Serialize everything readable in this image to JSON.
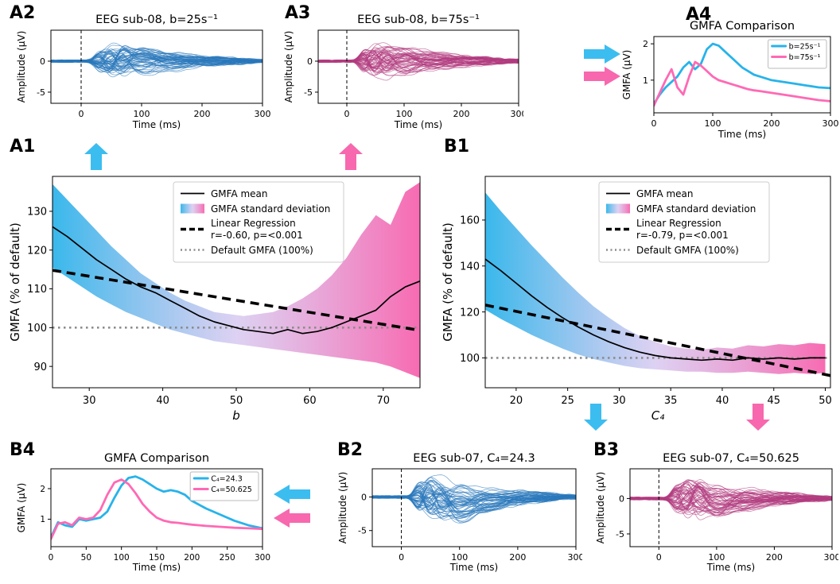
{
  "palette": {
    "blue": "#3cbdf0",
    "pink": "#f768ae",
    "trace_blue": "#2a78bc",
    "trace_pink": "#b23c80",
    "line_blue": "#27b3ea",
    "line_pink": "#ff69b4",
    "band_blue": "#2fb4ea",
    "band_mid": "#d5c6ef",
    "band_pink": "#f763ae",
    "baseline_gray": "#8c8c8c",
    "axis_black": "#000000"
  },
  "panel_labels": {
    "a1": "A1",
    "a2": "A2",
    "a3": "A3",
    "a4": "A4",
    "b1": "B1",
    "b2": "B2",
    "b3": "B3",
    "b4": "B4"
  },
  "arrows": [
    {
      "id": "a2-up-blue",
      "dir": "up",
      "color_key": "blue"
    },
    {
      "id": "a3-up-pink",
      "dir": "up",
      "color_key": "pink"
    },
    {
      "id": "a4-right-blue",
      "dir": "right",
      "color_key": "blue"
    },
    {
      "id": "a4-right-pink",
      "dir": "right",
      "color_key": "pink"
    },
    {
      "id": "b2-down-blue",
      "dir": "down",
      "color_key": "blue"
    },
    {
      "id": "b3-down-pink",
      "dir": "down",
      "color_key": "pink"
    },
    {
      "id": "b4-left-blue",
      "dir": "left",
      "color_key": "blue"
    },
    {
      "id": "b4-left-pink",
      "dir": "left",
      "color_key": "pink"
    }
  ],
  "chart_data": [
    {
      "id": "A2",
      "type": "line",
      "variant": "eeg_butterfly",
      "title": "EEG sub-08, b=25s⁻¹",
      "xlabel": "Time (ms)",
      "ylabel": "Amplitude (µV)",
      "xlim": [
        -50,
        300
      ],
      "ylim": [
        -6.8,
        5.0
      ],
      "xticks": [
        0,
        100,
        200,
        300
      ],
      "yticks": [
        0,
        -5
      ],
      "stim_line_x": 0,
      "n_traces": 60,
      "seed": 82,
      "color_key": "trace_blue",
      "peak_uv": 4.4,
      "neg_bias": 0.05,
      "description": "Butterfly plot of ~60 overlaid EEG channel traces; TEP deflections span about -5.5 to +4.5 µV peaking 30-120 ms after the stimulus (dashed line at t=0)"
    },
    {
      "id": "A3",
      "type": "line",
      "variant": "eeg_butterfly",
      "title": "EEG sub-08, b=75s⁻¹",
      "xlabel": "Time (ms)",
      "ylabel": "Amplitude (µV)",
      "xlim": [
        -50,
        300
      ],
      "ylim": [
        -6.8,
        5.0
      ],
      "xticks": [
        0,
        100,
        200,
        300
      ],
      "yticks": [
        0,
        -5
      ],
      "stim_line_x": 0,
      "n_traces": 60,
      "seed": 83,
      "color_key": "trace_pink",
      "peak_uv": 4.6,
      "neg_bias": 0.05,
      "description": "Butterfly plot of ~60 overlaid EEG channel traces in magenta; deflections span about -5 to +4.5 µV peaking 20-120 ms after the stimulus"
    },
    {
      "id": "A4",
      "type": "line",
      "title": "GMFA Comparison",
      "xlabel": "Time (ms)",
      "ylabel": "GMFA (µV)",
      "xlim": [
        0,
        300
      ],
      "ylim": [
        0.1,
        2.2
      ],
      "xticks": [
        0,
        100,
        200,
        300
      ],
      "yticks": [
        1,
        2
      ],
      "legend_loc": "upper_right",
      "x": [
        0,
        10,
        20,
        30,
        40,
        50,
        60,
        70,
        80,
        90,
        100,
        110,
        120,
        130,
        140,
        150,
        160,
        170,
        180,
        200,
        220,
        240,
        260,
        280,
        300
      ],
      "series": [
        {
          "name": "b=25s⁻¹",
          "color_key": "line_blue",
          "y": [
            0.35,
            0.6,
            0.8,
            0.95,
            1.1,
            1.35,
            1.5,
            1.3,
            1.45,
            1.85,
            2.0,
            1.95,
            1.8,
            1.65,
            1.5,
            1.35,
            1.25,
            1.15,
            1.1,
            1.0,
            0.95,
            0.9,
            0.85,
            0.8,
            0.78
          ]
        },
        {
          "name": "b=75s⁻¹",
          "color_key": "line_pink",
          "y": [
            0.3,
            0.65,
            1.0,
            1.3,
            0.8,
            0.6,
            1.1,
            1.5,
            1.4,
            1.25,
            1.1,
            1.0,
            0.95,
            0.9,
            0.85,
            0.8,
            0.75,
            0.72,
            0.7,
            0.65,
            0.6,
            0.55,
            0.5,
            0.45,
            0.42
          ]
        }
      ]
    },
    {
      "id": "A1",
      "type": "line_band",
      "xlabel": "b",
      "xlabel_italic": true,
      "ylabel": "GMFA (% of default)",
      "xlim": [
        25,
        75
      ],
      "ylim": [
        84.5,
        139
      ],
      "xticks": [
        30,
        40,
        50,
        60,
        70
      ],
      "yticks": [
        90,
        100,
        110,
        120,
        130
      ],
      "x": [
        25,
        27,
        29,
        31,
        33,
        35,
        37,
        39,
        41,
        43,
        45,
        47,
        49,
        51,
        53,
        55,
        57,
        59,
        61,
        63,
        65,
        67,
        69,
        71,
        73,
        75
      ],
      "mean": [
        126,
        123.5,
        120.5,
        117.5,
        115,
        112.5,
        110.5,
        109,
        107,
        105,
        103,
        101.5,
        100.5,
        99.5,
        99,
        98.5,
        99.5,
        98.5,
        99,
        100,
        101.5,
        103,
        104.5,
        108,
        110.5,
        112
      ],
      "upper": [
        137,
        133,
        129,
        125,
        121,
        117.5,
        114,
        111.5,
        109,
        107,
        105.5,
        104,
        103.5,
        103,
        103.5,
        104,
        105.5,
        107.5,
        110,
        113.5,
        118,
        124,
        129,
        126.5,
        135,
        137.5
      ],
      "lower": [
        115.5,
        113,
        110.5,
        108,
        106,
        104,
        102.5,
        101,
        99.5,
        98.5,
        97.5,
        96.5,
        96,
        95.5,
        95,
        94.5,
        94,
        93.5,
        93,
        92.5,
        92,
        91.5,
        91,
        90,
        88.5,
        87
      ],
      "regression": {
        "x0": 25,
        "y0": 114.8,
        "x1": 75,
        "y1": 99.3,
        "r": "-0.60",
        "p": "<0.001"
      },
      "baseline_y": 100,
      "legend": [
        {
          "swatch": "line",
          "label": "GMFA mean"
        },
        {
          "swatch": "gradient",
          "label": "GMFA standard deviation"
        },
        {
          "swatch": "dashed",
          "label": "Linear Regression",
          "label2": "r=-0.60, p=<0.001"
        },
        {
          "swatch": "dotted",
          "label": "Default GMFA (100%)"
        }
      ]
    },
    {
      "id": "B1",
      "type": "line_band",
      "xlabel": "C₄",
      "xlabel_italic": true,
      "ylabel": "GMFA (% of default)",
      "xlim": [
        17,
        50.5
      ],
      "ylim": [
        87,
        179
      ],
      "xticks": [
        20,
        25,
        30,
        35,
        40,
        45,
        50
      ],
      "yticks": [
        100,
        120,
        140,
        160
      ],
      "x": [
        17,
        18.5,
        20,
        21.5,
        23,
        24.5,
        26,
        27.5,
        29,
        30.5,
        32,
        33.5,
        35,
        36.5,
        38,
        39.5,
        41,
        42.5,
        44,
        45.5,
        47,
        48.5,
        50
      ],
      "mean": [
        143,
        138,
        132.5,
        127,
        122,
        117.5,
        113.5,
        110,
        107,
        104.5,
        102.5,
        101,
        100,
        99.5,
        99,
        99.5,
        99,
        100,
        99.5,
        100,
        99.5,
        100,
        100
      ],
      "upper": [
        172,
        164,
        156.5,
        149,
        142,
        135,
        128.5,
        122.5,
        117.5,
        113,
        109.5,
        107,
        105,
        104,
        103.5,
        104.5,
        104,
        105.5,
        105,
        106,
        105.5,
        106.5,
        106
      ],
      "lower": [
        121,
        117,
        113.5,
        110,
        107,
        104,
        101.5,
        99.5,
        98,
        96.5,
        95.5,
        95,
        94.5,
        94,
        94,
        93.5,
        93.5,
        94,
        93.5,
        93,
        93.5,
        93,
        93.5
      ],
      "regression": {
        "x0": 17,
        "y0": 123,
        "x1": 50.5,
        "y1": 92.3,
        "r": "-0.79",
        "p": "<0.001"
      },
      "baseline_y": 100,
      "legend": [
        {
          "swatch": "line",
          "label": "GMFA mean"
        },
        {
          "swatch": "gradient",
          "label": "GMFA standard deviation"
        },
        {
          "swatch": "dashed",
          "label": "Linear Regression",
          "label2": "r=-0.79, p=<0.001"
        },
        {
          "swatch": "dotted",
          "label": "Default GMFA (100%)"
        }
      ]
    },
    {
      "id": "B4",
      "type": "line",
      "title": "GMFA Comparison",
      "xlabel": "Time (ms)",
      "ylabel": "GMFA (µV)",
      "xlim": [
        0,
        300
      ],
      "ylim": [
        0.1,
        2.65
      ],
      "xticks": [
        0,
        50,
        100,
        150,
        200,
        250,
        300
      ],
      "yticks": [
        1,
        2
      ],
      "legend_loc": "upper_right",
      "x": [
        0,
        10,
        20,
        30,
        40,
        50,
        60,
        70,
        80,
        90,
        100,
        110,
        120,
        130,
        140,
        150,
        160,
        170,
        180,
        190,
        200,
        220,
        240,
        260,
        280,
        300
      ],
      "series": [
        {
          "name": "C₄=24.3",
          "color_key": "line_blue",
          "y": [
            0.4,
            0.9,
            0.8,
            0.75,
            1.0,
            0.95,
            1.0,
            1.05,
            1.25,
            1.7,
            2.1,
            2.35,
            2.4,
            2.3,
            2.15,
            2.0,
            1.9,
            1.95,
            1.9,
            1.8,
            1.6,
            1.35,
            1.15,
            0.95,
            0.8,
            0.7
          ]
        },
        {
          "name": "C₄=50.625",
          "color_key": "line_pink",
          "y": [
            0.35,
            0.85,
            0.9,
            0.8,
            1.05,
            1.0,
            1.05,
            1.3,
            1.8,
            2.2,
            2.3,
            2.15,
            1.85,
            1.5,
            1.25,
            1.05,
            0.95,
            0.9,
            0.88,
            0.85,
            0.82,
            0.78,
            0.75,
            0.72,
            0.7,
            0.68
          ]
        }
      ]
    },
    {
      "id": "B2",
      "type": "line",
      "variant": "eeg_butterfly",
      "title": "EEG sub-07, C₄=24.3",
      "xlabel": "Time (ms)",
      "ylabel": "Amplitude (µV)",
      "xlim": [
        -50,
        300
      ],
      "ylim": [
        -7.4,
        4.2
      ],
      "xticks": [
        0,
        100,
        200,
        300
      ],
      "yticks": [
        0,
        -5
      ],
      "stim_line_x": 0,
      "n_traces": 60,
      "seed": 72,
      "color_key": "trace_blue",
      "peak_uv": 5.2,
      "neg_bias": 0.3,
      "description": "Butterfly plot of ~60 overlaid EEG channel traces; strong negative deflections to about -6.5 µV between 80-180 ms, positives to about +3.5 µV"
    },
    {
      "id": "B3",
      "type": "line",
      "variant": "eeg_butterfly",
      "title": "EEG sub-07, C₄=50.625",
      "xlabel": "Time (ms)",
      "ylabel": "Amplitude (µV)",
      "xlim": [
        -50,
        300
      ],
      "ylim": [
        -6.8,
        4.2
      ],
      "xticks": [
        0,
        100,
        200,
        300
      ],
      "yticks": [
        0,
        -5
      ],
      "stim_line_x": 0,
      "n_traces": 60,
      "seed": 73,
      "color_key": "trace_pink",
      "peak_uv": 4.8,
      "neg_bias": 0.15,
      "description": "Butterfly plot of ~60 overlaid EEG channel traces in magenta; deflections span about -5.5 to +3.5 µV peaking 40-150 ms"
    }
  ]
}
